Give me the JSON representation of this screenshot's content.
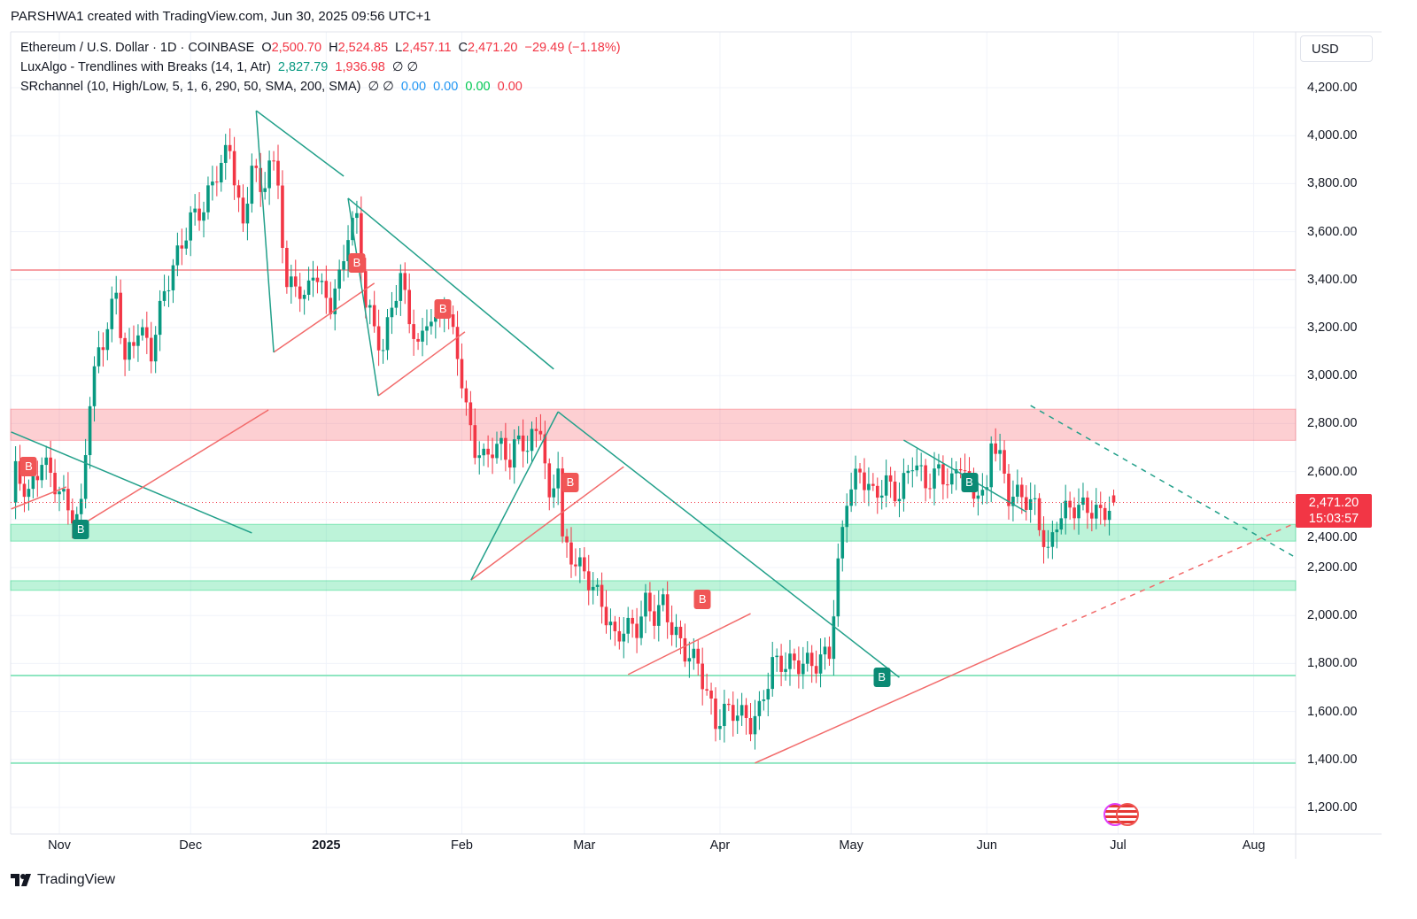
{
  "header": {
    "credit": "PARSHWA1 created with TradingView.com, Jun 30, 2025 09:56 UTC+1"
  },
  "legend": {
    "symbol": "Ethereum / U.S. Dollar · 1D · COINBASE",
    "o_label": "O",
    "o": "2,500.70",
    "h_label": "H",
    "h": "2,524.85",
    "l_label": "L",
    "l": "2,457.11",
    "c_label": "C",
    "c": "2,471.20",
    "change": "−29.49 (−1.18%)",
    "ind1": "LuxAlgo - Trendlines with Breaks (14, 1, Atr)",
    "ind1_v1": "2,827.79",
    "ind1_v2": "1,936.98",
    "ind1_icons": "∅ ∅",
    "ind2": "SRchannel (10, High/Low, 5, 1, 6, 290, 50, SMA, 200, SMA)",
    "ind2_icons": "∅ ∅",
    "ind2_v1": "0.00",
    "ind2_v2": "0.00",
    "ind2_v3": "0.00",
    "ind2_v4": "0.00"
  },
  "scale": {
    "currency": "USD",
    "last_price": "2,471.20",
    "countdown": "15:03:57"
  },
  "footer": {
    "logo": "TradingView"
  },
  "colors": {
    "up": "#089981",
    "down": "#f23645",
    "trend": "#22a08a",
    "red_line": "#f26b6b"
  },
  "chart_data": {
    "type": "candlestick",
    "title": "Ethereum / U.S. Dollar · 1D · COINBASE",
    "x_unit": "days since 2024-11-01",
    "ylim": [
      1100,
      4400
    ],
    "y_ticks": [
      "4,200.00",
      "4,000.00",
      "3,800.00",
      "3,600.00",
      "3,400.00",
      "3,200.00",
      "3,000.00",
      "2,800.00",
      "2,600.00",
      "2,400.00",
      "2,200.00",
      "2,000.00",
      "1,800.00",
      "1,600.00",
      "1,400.00",
      "1,200.00"
    ],
    "y_tick_values": [
      4200,
      4000,
      3800,
      3600,
      3400,
      3200,
      3000,
      2800,
      2600,
      2400,
      2200,
      2000,
      1800,
      1600,
      1400,
      1200
    ],
    "x_ticks": [
      {
        "label": "Nov",
        "day": 0
      },
      {
        "label": "Dec",
        "day": 30
      },
      {
        "label": "2025",
        "day": 61,
        "bold": true
      },
      {
        "label": "Feb",
        "day": 92
      },
      {
        "label": "Mar",
        "day": 120
      },
      {
        "label": "Apr",
        "day": 151
      },
      {
        "label": "May",
        "day": 181
      },
      {
        "label": "Jun",
        "day": 212
      },
      {
        "label": "Jul",
        "day": 242
      },
      {
        "label": "Aug",
        "day": 273
      }
    ],
    "close_path": [
      [
        -10,
        2600
      ],
      [
        -7,
        2500
      ],
      [
        -4,
        2650
      ],
      [
        -1,
        2550
      ],
      [
        2,
        2450
      ],
      [
        4,
        2400
      ],
      [
        5,
        2450
      ],
      [
        6,
        2700
      ],
      [
        7,
        2900
      ],
      [
        9,
        3100
      ],
      [
        11,
        3200
      ],
      [
        13,
        3350
      ],
      [
        15,
        3050
      ],
      [
        18,
        3200
      ],
      [
        21,
        3100
      ],
      [
        24,
        3350
      ],
      [
        27,
        3500
      ],
      [
        30,
        3650
      ],
      [
        33,
        3700
      ],
      [
        36,
        3850
      ],
      [
        39,
        3950
      ],
      [
        42,
        3600
      ],
      [
        44,
        3900
      ],
      [
        46,
        3750
      ],
      [
        48,
        3900
      ],
      [
        50,
        3800
      ],
      [
        52,
        3350
      ],
      [
        54,
        3400
      ],
      [
        56,
        3300
      ],
      [
        58,
        3450
      ],
      [
        60,
        3350
      ],
      [
        62,
        3300
      ],
      [
        64,
        3400
      ],
      [
        66,
        3600
      ],
      [
        68,
        3650
      ],
      [
        70,
        3300
      ],
      [
        72,
        3200
      ],
      [
        74,
        3100
      ],
      [
        76,
        3300
      ],
      [
        78,
        3400
      ],
      [
        80,
        3250
      ],
      [
        82,
        3100
      ],
      [
        84,
        3250
      ],
      [
        86,
        3200
      ],
      [
        88,
        3300
      ],
      [
        91,
        3100
      ],
      [
        93,
        2850
      ],
      [
        95,
        2700
      ],
      [
        97,
        2650
      ],
      [
        99,
        2700
      ],
      [
        101,
        2700
      ],
      [
        103,
        2650
      ],
      [
        105,
        2750
      ],
      [
        107,
        2700
      ],
      [
        110,
        2800
      ],
      [
        112,
        2450
      ],
      [
        114,
        2650
      ],
      [
        115,
        2300
      ],
      [
        117,
        2250
      ],
      [
        119,
        2200
      ],
      [
        121,
        2150
      ],
      [
        124,
        2050
      ],
      [
        127,
        1900
      ],
      [
        129,
        1950
      ],
      [
        132,
        1950
      ],
      [
        134,
        2050
      ],
      [
        136,
        2000
      ],
      [
        138,
        2050
      ],
      [
        140,
        1950
      ],
      [
        143,
        1850
      ],
      [
        146,
        1800
      ],
      [
        150,
        1550
      ],
      [
        152,
        1600
      ],
      [
        155,
        1600
      ],
      [
        158,
        1550
      ],
      [
        160,
        1600
      ],
      [
        163,
        1800
      ],
      [
        166,
        1800
      ],
      [
        170,
        1800
      ],
      [
        173,
        1800
      ],
      [
        176,
        1850
      ],
      [
        178,
        2200
      ],
      [
        180,
        2500
      ],
      [
        183,
        2600
      ],
      [
        186,
        2500
      ],
      [
        189,
        2550
      ],
      [
        192,
        2500
      ],
      [
        195,
        2650
      ],
      [
        198,
        2550
      ],
      [
        201,
        2600
      ],
      [
        204,
        2550
      ],
      [
        206,
        2650
      ],
      [
        209,
        2500
      ],
      [
        212,
        2500
      ],
      [
        213,
        2750
      ],
      [
        215,
        2650
      ],
      [
        217,
        2500
      ],
      [
        220,
        2500
      ],
      [
        223,
        2450
      ],
      [
        226,
        2250
      ],
      [
        228,
        2400
      ],
      [
        231,
        2450
      ],
      [
        235,
        2450
      ],
      [
        238,
        2420
      ],
      [
        241,
        2471.2
      ]
    ],
    "last_candle": {
      "open": 2500.7,
      "high": 2524.85,
      "low": 2457.11,
      "close": 2471.2
    },
    "zones": [
      {
        "type": "resistance",
        "from": 2730,
        "to": 2860,
        "color": "red"
      },
      {
        "type": "support",
        "from": 2310,
        "to": 2380,
        "color": "green"
      },
      {
        "type": "support",
        "from": 2105,
        "to": 2145,
        "color": "green"
      }
    ],
    "levels": [
      {
        "price": 3440,
        "color": "red"
      },
      {
        "price": 1750,
        "color": "green"
      },
      {
        "price": 1385,
        "color": "green"
      }
    ],
    "trendlines_down": [
      [
        [
          -11,
          2765
        ],
        [
          44,
          2344
        ]
      ],
      [
        [
          45,
          4104
        ],
        [
          65,
          3831
        ]
      ],
      [
        [
          66,
          3739
        ],
        [
          113,
          3027
        ]
      ],
      [
        [
          114,
          2849
        ],
        [
          192,
          1742
        ]
      ],
      [
        [
          193,
          2731
        ],
        [
          221,
          2432
        ]
      ],
      [
        [
          222,
          2875
        ],
        [
          282,
          2248
        ],
        "dashed"
      ]
    ],
    "trendlines_up": [
      [
        [
          -11,
          2444
        ],
        [
          1.6,
          2536
        ]
      ],
      [
        [
          6,
          2388
        ],
        [
          47.8,
          2857
        ]
      ],
      [
        [
          49,
          3097
        ],
        [
          72,
          3385
        ]
      ],
      [
        [
          72.9,
          2916
        ],
        [
          92.7,
          3182
        ]
      ],
      [
        [
          94.1,
          2148
        ],
        [
          129,
          2620
        ]
      ],
      [
        [
          130,
          1754
        ],
        [
          158,
          2008
        ]
      ],
      [
        [
          159,
          1385
        ],
        [
          227,
          1938
        ]
      ],
      [
        [
          227,
          1938
        ],
        [
          282,
          2381
        ],
        "dashed"
      ]
    ],
    "anchors": [
      [
        [
          45,
          4104
        ],
        [
          49,
          3097
        ]
      ],
      [
        [
          66,
          3739
        ],
        [
          72.9,
          2916
        ]
      ],
      [
        [
          114,
          2849
        ],
        [
          94.1,
          2148
        ]
      ]
    ],
    "break_labels": [
      {
        "text": "B",
        "day": -7,
        "price": 2620,
        "kind": "down"
      },
      {
        "text": "B",
        "day": 68,
        "price": 3470,
        "kind": "down"
      },
      {
        "text": "B",
        "day": 87.7,
        "price": 3278,
        "kind": "down"
      },
      {
        "text": "B",
        "day": 116.8,
        "price": 2554,
        "kind": "down"
      },
      {
        "text": "B",
        "day": 147,
        "price": 2067,
        "kind": "down"
      },
      {
        "text": "B",
        "day": 4.9,
        "price": 2359,
        "kind": "up"
      },
      {
        "text": "B",
        "day": 188,
        "price": 1742,
        "kind": "up"
      },
      {
        "text": "B",
        "day": 208,
        "price": 2555,
        "kind": "up"
      }
    ],
    "last_price": 2471.2
  }
}
